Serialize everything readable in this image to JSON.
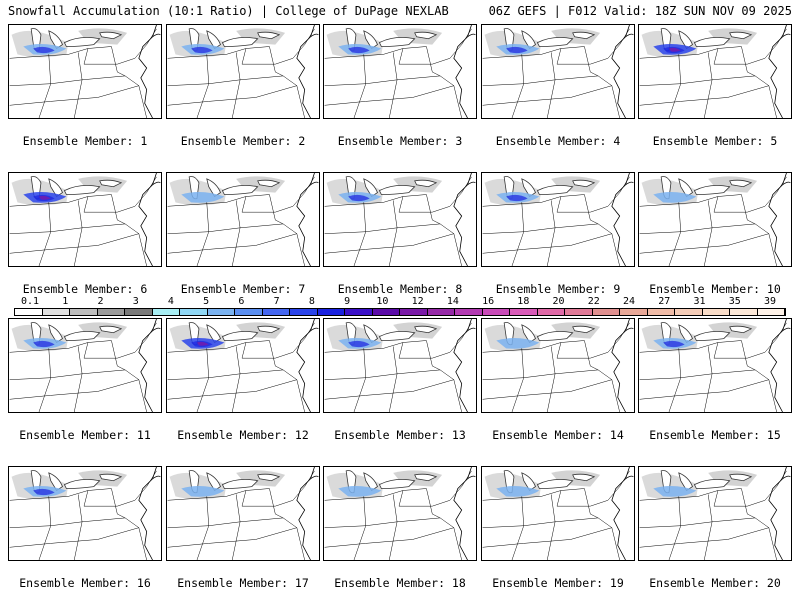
{
  "header": {
    "left": "Snowfall Accumulation (10:1 Ratio) | College of DuPage NEXLAB",
    "right": "06Z GEFS | F012 Valid: 18Z SUN NOV 09 2025"
  },
  "colorbar": {
    "labels": [
      "0.1",
      "1",
      "2",
      "3",
      "4",
      "5",
      "6",
      "7",
      "8",
      "9",
      "10",
      "12",
      "14",
      "16",
      "18",
      "20",
      "22",
      "24",
      "27",
      "31",
      "35",
      "39"
    ],
    "colors": [
      "#ffffff",
      "#e0e0e0",
      "#bdbdbd",
      "#9a9a9a",
      "#7a7a7a",
      "#a8eef4",
      "#8fd6f4",
      "#7ab2f0",
      "#5a8ef0",
      "#4466f0",
      "#2a44ea",
      "#1a22e0",
      "#3a10c8",
      "#5a0aa8",
      "#7a1aa8",
      "#962aa8",
      "#b23ab2",
      "#c84ab8",
      "#d85ab8",
      "#e06aa8",
      "#e07a98",
      "#e09090",
      "#e8a898",
      "#f0bca8",
      "#f4ccb8",
      "#f8dcc8",
      "#fce8d8",
      "#fef2e8"
    ]
  },
  "panels": [
    {
      "label": "Ensemble Member: 1",
      "intensity": 2
    },
    {
      "label": "Ensemble Member: 2",
      "intensity": 2
    },
    {
      "label": "Ensemble Member: 3",
      "intensity": 2
    },
    {
      "label": "Ensemble Member: 4",
      "intensity": 2
    },
    {
      "label": "Ensemble Member: 5",
      "intensity": 3
    },
    {
      "label": "Ensemble Member: 6",
      "intensity": 3
    },
    {
      "label": "Ensemble Member: 7",
      "intensity": 1
    },
    {
      "label": "Ensemble Member: 8",
      "intensity": 2
    },
    {
      "label": "Ensemble Member: 9",
      "intensity": 2
    },
    {
      "label": "Ensemble Member: 10",
      "intensity": 1
    },
    {
      "label": "Ensemble Member: 11",
      "intensity": 2
    },
    {
      "label": "Ensemble Member: 12",
      "intensity": 3
    },
    {
      "label": "Ensemble Member: 13",
      "intensity": 2
    },
    {
      "label": "Ensemble Member: 14",
      "intensity": 1
    },
    {
      "label": "Ensemble Member: 15",
      "intensity": 2
    },
    {
      "label": "Ensemble Member: 16",
      "intensity": 2
    },
    {
      "label": "Ensemble Member: 17",
      "intensity": 1
    },
    {
      "label": "Ensemble Member: 18",
      "intensity": 1
    },
    {
      "label": "Ensemble Member: 19",
      "intensity": 1
    },
    {
      "label": "Ensemble Member: 20",
      "intensity": 1
    }
  ]
}
